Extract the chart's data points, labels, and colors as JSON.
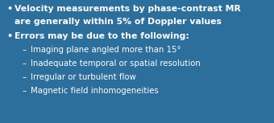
{
  "background_color": "#2C6E9C",
  "text_color": "#FFFFFF",
  "bullet1_line1": "Velocity measurements by phase-contrast MR",
  "bullet1_line2": "are generally within 5% of Doppler values",
  "bullet2": "Errors may be due to the following:",
  "sub1": "Imaging plane angled more than 15°",
  "sub2": "Inadequate temporal or spatial resolution",
  "sub3": "Irregular or turbulent flow",
  "sub4": "Magnetic field inhomogeneities",
  "bullet_symbol": "•",
  "dash_symbol": "–",
  "main_fontsize": 7.8,
  "sub_fontsize": 7.3,
  "figwidth": 3.4,
  "figheight": 1.53,
  "dpi": 100
}
